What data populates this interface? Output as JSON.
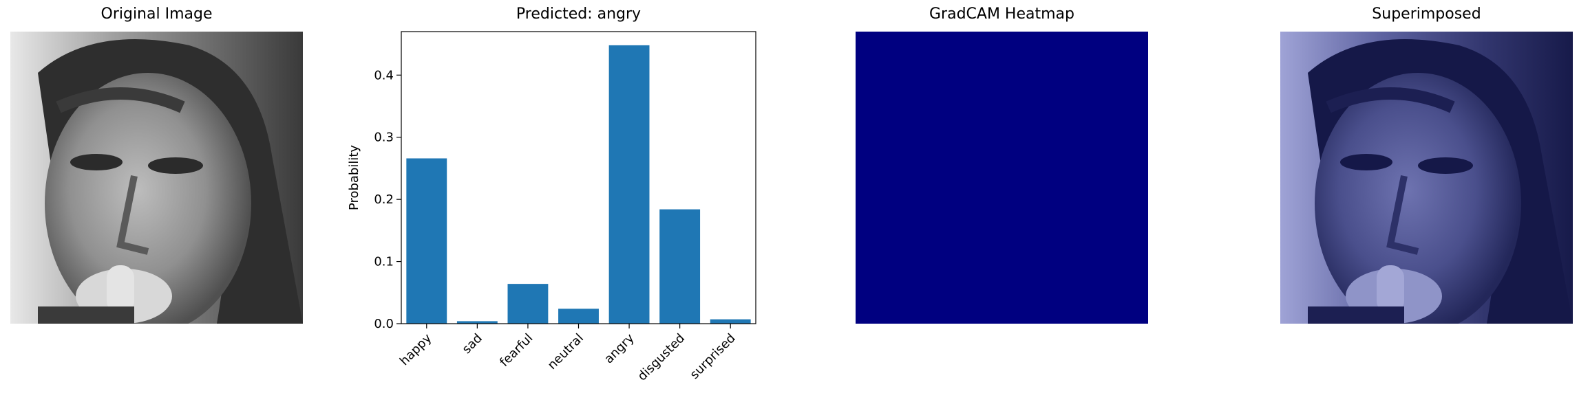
{
  "panels": {
    "original_title": "Original Image",
    "chart_title": "Predicted: angry",
    "gradcam_title": "GradCAM Heatmap",
    "superimposed_title": "Superimposed"
  },
  "colors": {
    "bar": "#1f77b4",
    "heatmap": "#000080",
    "overlay": "#8088c8"
  },
  "chart_data": {
    "type": "bar",
    "title": "Predicted: angry",
    "xlabel": "",
    "ylabel": "Probability",
    "categories": [
      "happy",
      "sad",
      "fearful",
      "neutral",
      "angry",
      "disgusted",
      "surprised"
    ],
    "values": [
      0.266,
      0.004,
      0.064,
      0.024,
      0.448,
      0.184,
      0.007
    ],
    "ylim": [
      0,
      0.47
    ],
    "yticks": [
      0.0,
      0.1,
      0.2,
      0.3,
      0.4
    ],
    "ytick_labels": [
      "0.0",
      "0.1",
      "0.2",
      "0.3",
      "0.4"
    ],
    "grid": false
  }
}
